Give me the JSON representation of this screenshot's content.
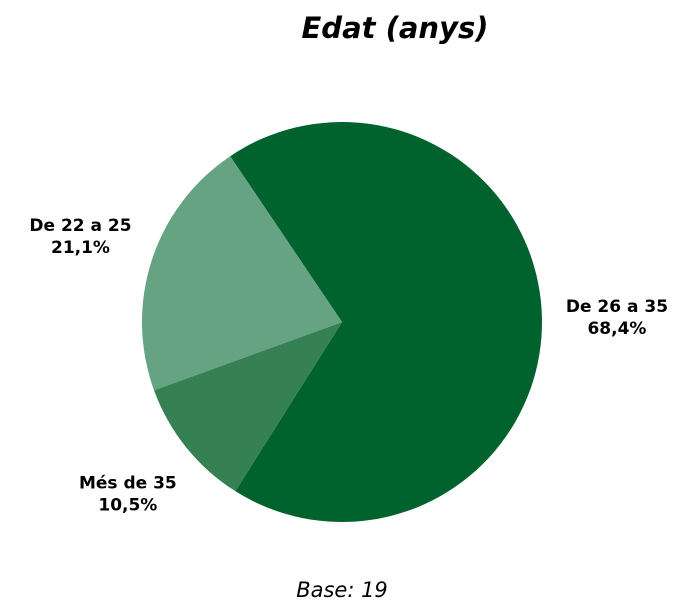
{
  "chart_data": {
    "type": "pie",
    "title": "Edat (anys)",
    "categories": [
      "De 26 a 35",
      "Més de 35",
      "De 22 a 25"
    ],
    "values": [
      68.4,
      10.5,
      21.1
    ],
    "value_labels": [
      "68,4%",
      "10,5%",
      "21,1%"
    ],
    "colors": [
      "#00632e",
      "#358153",
      "#66a382"
    ],
    "footnote": "Base: 19"
  }
}
